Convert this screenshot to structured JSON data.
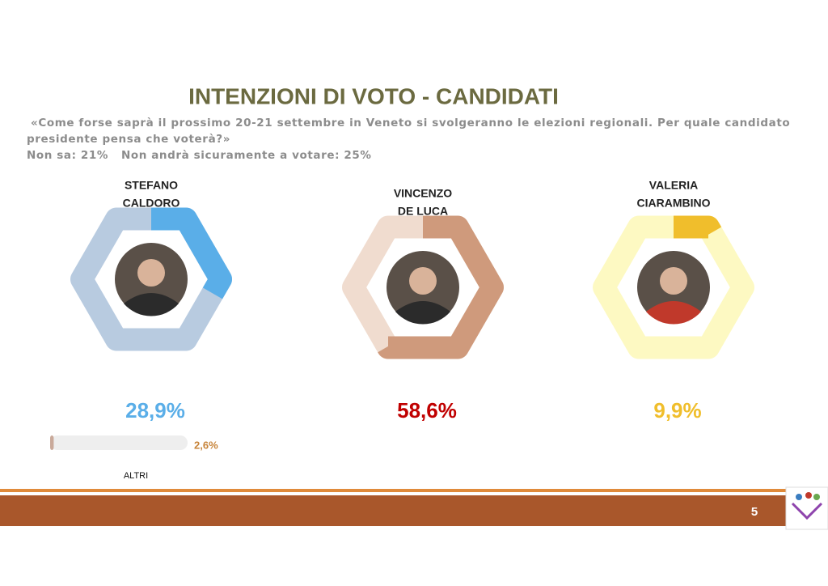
{
  "title": "INTENZIONI DI VOTO - CANDIDATI",
  "question": [
    "«Come forse saprà il prossimo 20-21 settembre in Veneto si svolgeranno le elezioni regionali. Per quale candidato",
    "presidente pensa che voterà?»"
  ],
  "note": "Non sa: 21%   Non andrà sicuramente a votare: 25%",
  "page_number": "5",
  "chart_data": [
    {
      "type": "donut",
      "title_lines": [
        "STEFANO",
        "CALDORO"
      ],
      "values": [
        28.9
      ],
      "value_labels": [
        "28,9%"
      ],
      "color": "#5aaee8",
      "track_color": "#b8cbe0",
      "label_color": "#5aaee8",
      "ylim": [
        0,
        100
      ]
    },
    {
      "type": "donut",
      "title_lines": [
        "VINCENZO",
        "DE LUCA"
      ],
      "values": [
        58.6
      ],
      "value_labels": [
        "58,6%"
      ],
      "color": "#cf9a7c",
      "track_color": "#f0dccf",
      "label_color": "#c00000",
      "ylim": [
        0,
        100
      ]
    },
    {
      "type": "donut",
      "title_lines": [
        "VALERIA",
        "CIARAMBINO"
      ],
      "values": [
        9.9
      ],
      "value_labels": [
        "9,9%"
      ],
      "color": "#f0be2c",
      "track_color": "#fdf9c2",
      "label_color": "#f0be2c",
      "ylim": [
        0,
        100
      ]
    },
    {
      "type": "bar",
      "categories": [
        "ALTRI"
      ],
      "values": [
        2.6
      ],
      "value_labels": [
        "2,6%"
      ],
      "color": "#c9a99a",
      "track_color": "#eeeeee",
      "label_color": "#c7843a",
      "xlim": [
        0,
        100
      ]
    }
  ]
}
